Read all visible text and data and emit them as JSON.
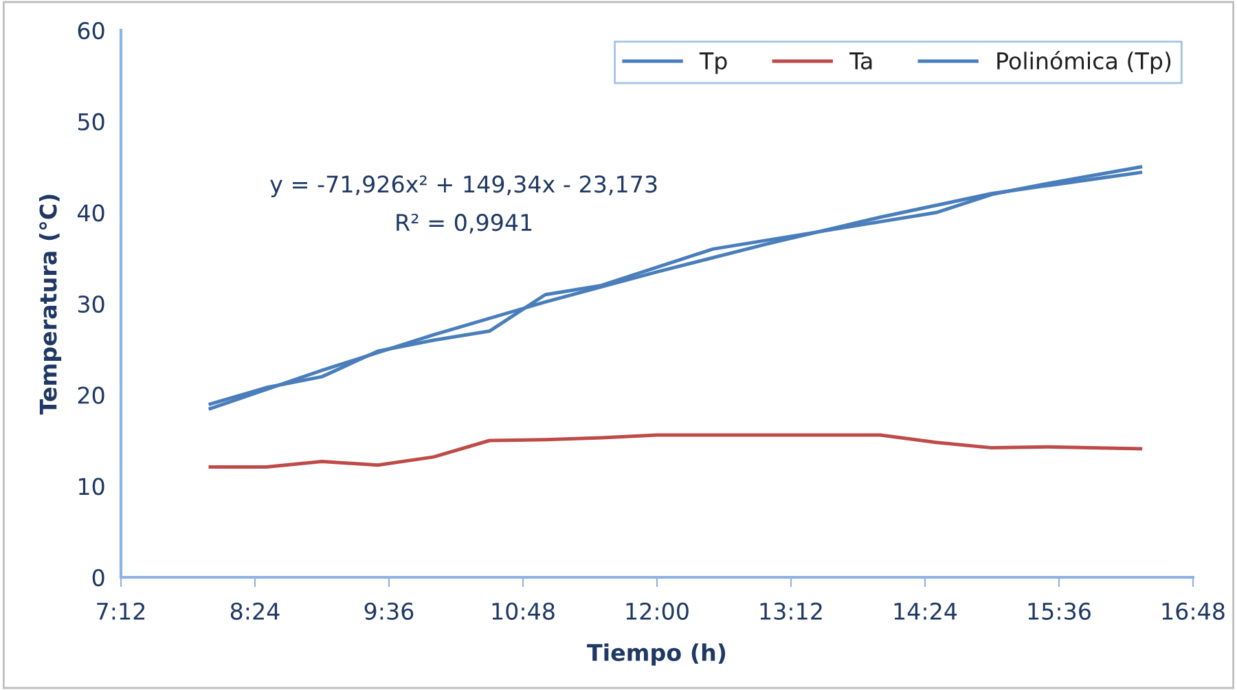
{
  "chart_data": {
    "type": "line",
    "xlabel": "Tiempo (h)",
    "ylabel": "Temperatura (°C)",
    "xlim": [
      7.2,
      16.8
    ],
    "xticks": [
      {
        "value": 7.2,
        "label": "7:12"
      },
      {
        "value": 8.4,
        "label": "8:24"
      },
      {
        "value": 9.6,
        "label": "9:36"
      },
      {
        "value": 10.8,
        "label": "10:48"
      },
      {
        "value": 12.0,
        "label": "12:00"
      },
      {
        "value": 13.2,
        "label": "13:12"
      },
      {
        "value": 14.4,
        "label": "14:24"
      },
      {
        "value": 15.6,
        "label": "15:36"
      },
      {
        "value": 16.8,
        "label": "16:48"
      }
    ],
    "ylim": [
      0,
      60
    ],
    "yticks": [
      0,
      10,
      20,
      30,
      40,
      50,
      60
    ],
    "grid": false,
    "legend": "top right",
    "annotations": [
      "y = -71,926x² + 149,34x - 23,173",
      "R² = 0,9941"
    ],
    "series": [
      {
        "name": "Tp",
        "color": "#4a7ebb",
        "x": [
          8.0,
          8.5,
          9.0,
          9.5,
          10.0,
          10.5,
          11.0,
          11.5,
          12.0,
          12.5,
          13.0,
          13.5,
          14.0,
          14.5,
          15.0,
          15.5,
          16.33
        ],
        "values": [
          19.0,
          20.8,
          22.0,
          24.8,
          26.0,
          27.0,
          31.0,
          32.0,
          34.0,
          36.0,
          37.0,
          38.0,
          39.0,
          40.0,
          42.0,
          43.2,
          45.0
        ]
      },
      {
        "name": "Ta",
        "color": "#be4b48",
        "x": [
          8.0,
          8.5,
          9.0,
          9.5,
          10.0,
          10.5,
          11.0,
          11.5,
          12.0,
          12.5,
          13.0,
          13.5,
          14.0,
          14.5,
          15.0,
          15.5,
          16.33
        ],
        "values": [
          12.1,
          12.1,
          12.7,
          12.3,
          13.2,
          15.0,
          15.1,
          15.3,
          15.6,
          15.6,
          15.6,
          15.6,
          15.6,
          14.8,
          14.2,
          14.3,
          14.1
        ]
      },
      {
        "name": "Polinómica (Tp)",
        "type": "line",
        "color": "#4a7ebb",
        "x": [
          8.0,
          9.0,
          10.0,
          11.0,
          12.0,
          13.0,
          14.0,
          15.0,
          16.33
        ],
        "values": [
          18.5,
          22.7,
          26.6,
          30.2,
          33.5,
          36.6,
          39.5,
          42.1,
          44.4
        ]
      }
    ]
  }
}
